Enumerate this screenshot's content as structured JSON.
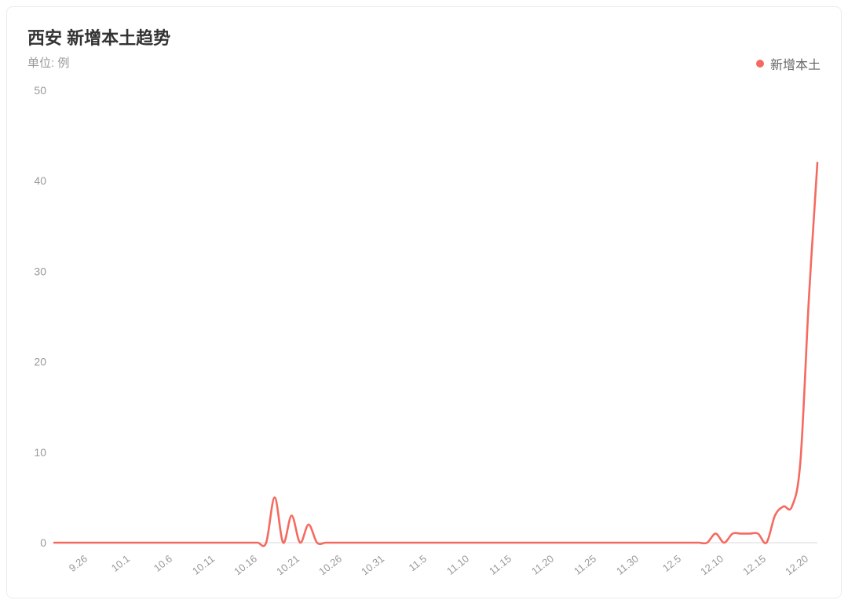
{
  "chart": {
    "type": "line",
    "title": "西安 新增本土趋势",
    "subtitle": "单位: 例",
    "legend_label": "新增本土",
    "series_color": "#f56a60",
    "background_color": "#ffffff",
    "border_color": "#ececec",
    "title_color": "#333333",
    "subtitle_color": "#999999",
    "legend_text_color": "#666666",
    "tick_text_color": "#999999",
    "axis_line_color": "#d9d9d9",
    "line_width": 2.6,
    "title_fontsize": 22,
    "subtitle_fontsize": 15,
    "legend_fontsize": 16,
    "ytick_fontsize": 14,
    "xtick_fontsize": 13,
    "ylim": [
      0,
      50
    ],
    "ytick_step": 10,
    "yticks": [
      0,
      10,
      20,
      30,
      40,
      50
    ],
    "xtick_labels": [
      "9.26",
      "10.1",
      "10.6",
      "10.11",
      "10.16",
      "10.21",
      "10.26",
      "10.31",
      "11.5",
      "11.10",
      "11.15",
      "11.20",
      "11.25",
      "11.30",
      "12.5",
      "12.10",
      "12.15",
      "12.20"
    ],
    "xtick_indices": [
      4,
      9,
      14,
      19,
      24,
      29,
      34,
      39,
      44,
      49,
      54,
      59,
      64,
      69,
      74,
      79,
      84,
      89
    ],
    "xtick_rotation_deg": -38,
    "n_points": 91,
    "values": [
      0,
      0,
      0,
      0,
      0,
      0,
      0,
      0,
      0,
      0,
      0,
      0,
      0,
      0,
      0,
      0,
      0,
      0,
      0,
      0,
      0,
      0,
      0,
      0,
      0,
      0,
      5,
      0,
      3,
      0,
      2,
      0,
      0,
      0,
      0,
      0,
      0,
      0,
      0,
      0,
      0,
      0,
      0,
      0,
      0,
      0,
      0,
      0,
      0,
      0,
      0,
      0,
      0,
      0,
      0,
      0,
      0,
      0,
      0,
      0,
      0,
      0,
      0,
      0,
      0,
      0,
      0,
      0,
      0,
      0,
      0,
      0,
      0,
      0,
      0,
      0,
      0,
      0,
      1,
      0,
      1,
      1,
      1,
      1,
      0,
      3,
      4,
      4,
      9,
      27,
      42
    ]
  }
}
